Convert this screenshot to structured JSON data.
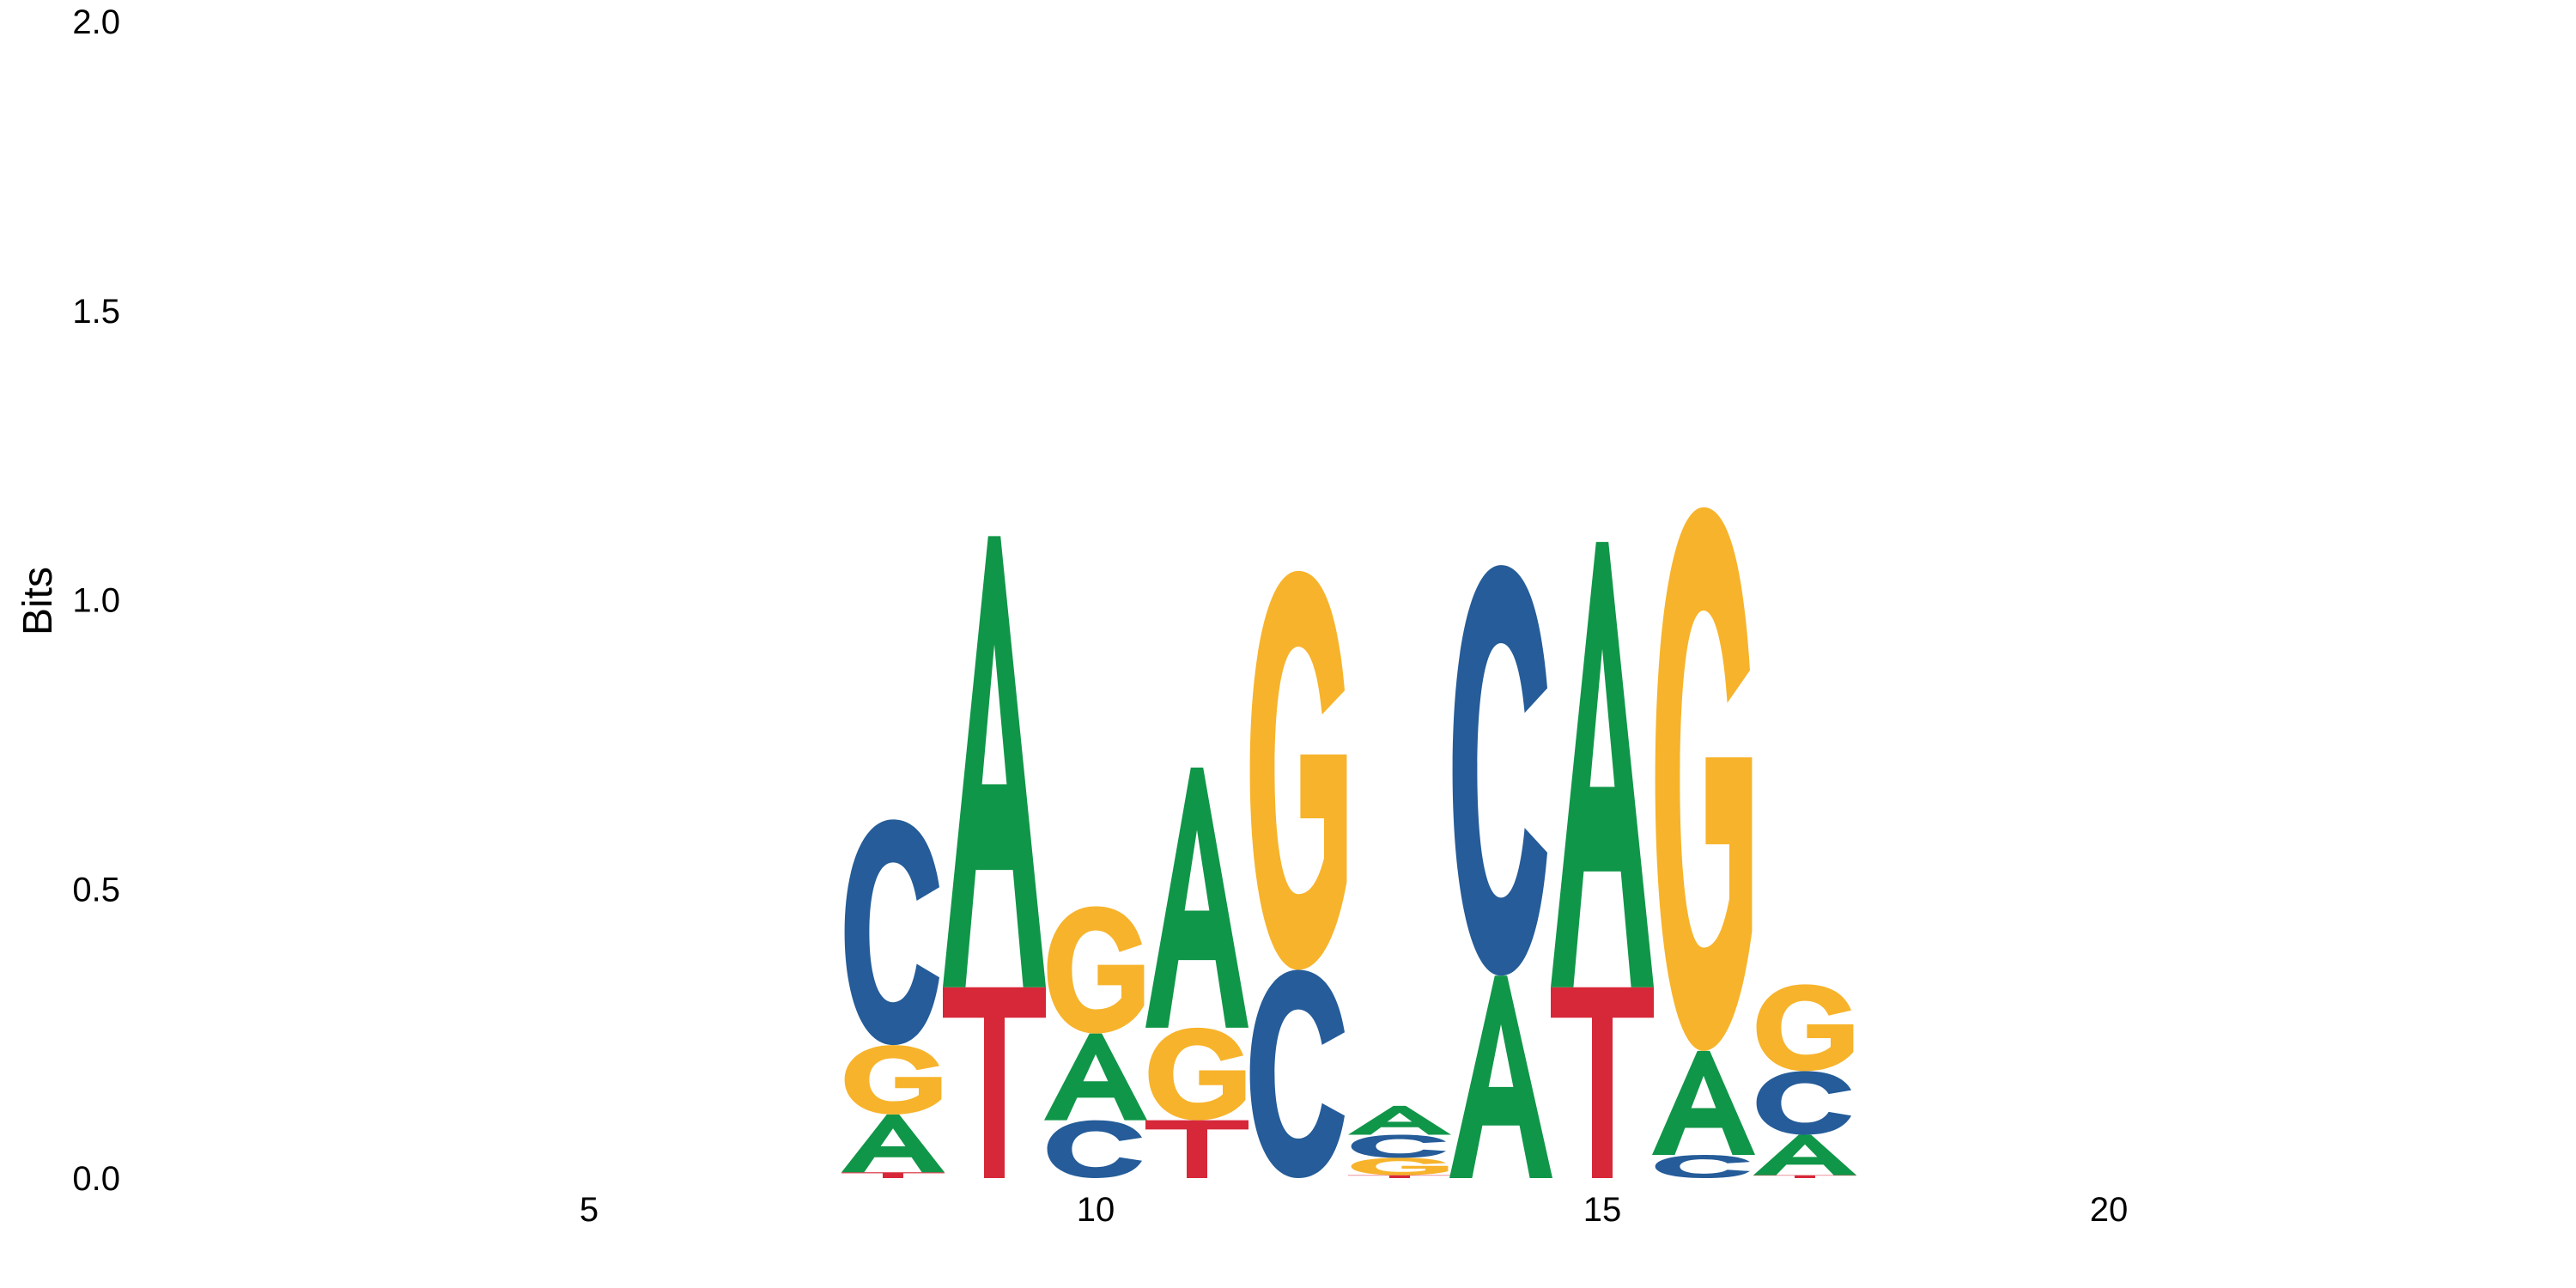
{
  "chart_data": {
    "type": "sequence-logo",
    "title": "",
    "xlabel": "",
    "ylabel": "Bits",
    "ylim": [
      0,
      2
    ],
    "xlim": [
      1,
      25
    ],
    "y_ticks": [
      "0.0",
      "0.5",
      "1.0",
      "1.5",
      "2.0"
    ],
    "x_ticks": [
      5,
      10,
      15,
      20
    ],
    "grid": false,
    "legend": "none",
    "colors": {
      "A": "#109648",
      "C": "#255c99",
      "G": "#f7b32b",
      "T": "#d62839"
    },
    "positions": [
      {
        "pos": 8,
        "letters": [
          {
            "base": "T",
            "bits": 0.01
          },
          {
            "base": "A",
            "bits": 0.1
          },
          {
            "base": "G",
            "bits": 0.12
          },
          {
            "base": "C",
            "bits": 0.39
          }
        ]
      },
      {
        "pos": 9,
        "letters": [
          {
            "base": "T",
            "bits": 0.33
          },
          {
            "base": "A",
            "bits": 0.78
          }
        ]
      },
      {
        "pos": 10,
        "letters": [
          {
            "base": "C",
            "bits": 0.1
          },
          {
            "base": "A",
            "bits": 0.15
          },
          {
            "base": "G",
            "bits": 0.22
          }
        ]
      },
      {
        "pos": 11,
        "letters": [
          {
            "base": "T",
            "bits": 0.1
          },
          {
            "base": "G",
            "bits": 0.16
          },
          {
            "base": "A",
            "bits": 0.45
          }
        ]
      },
      {
        "pos": 12,
        "letters": [
          {
            "base": "C",
            "bits": 0.36
          },
          {
            "base": "G",
            "bits": 0.69
          }
        ]
      },
      {
        "pos": 13,
        "letters": [
          {
            "base": "T",
            "bits": 0.005
          },
          {
            "base": "G",
            "bits": 0.03
          },
          {
            "base": "C",
            "bits": 0.04
          },
          {
            "base": "A",
            "bits": 0.05
          }
        ]
      },
      {
        "pos": 14,
        "letters": [
          {
            "base": "A",
            "bits": 0.35
          },
          {
            "base": "C",
            "bits": 0.71
          }
        ]
      },
      {
        "pos": 15,
        "letters": [
          {
            "base": "T",
            "bits": 0.33
          },
          {
            "base": "A",
            "bits": 0.77
          }
        ]
      },
      {
        "pos": 16,
        "letters": [
          {
            "base": "C",
            "bits": 0.04
          },
          {
            "base": "A",
            "bits": 0.18
          },
          {
            "base": "G",
            "bits": 0.94
          }
        ]
      },
      {
        "pos": 17,
        "letters": [
          {
            "base": "T",
            "bits": 0.005
          },
          {
            "base": "A",
            "bits": 0.07
          },
          {
            "base": "C",
            "bits": 0.11
          },
          {
            "base": "G",
            "bits": 0.15
          }
        ]
      }
    ]
  }
}
